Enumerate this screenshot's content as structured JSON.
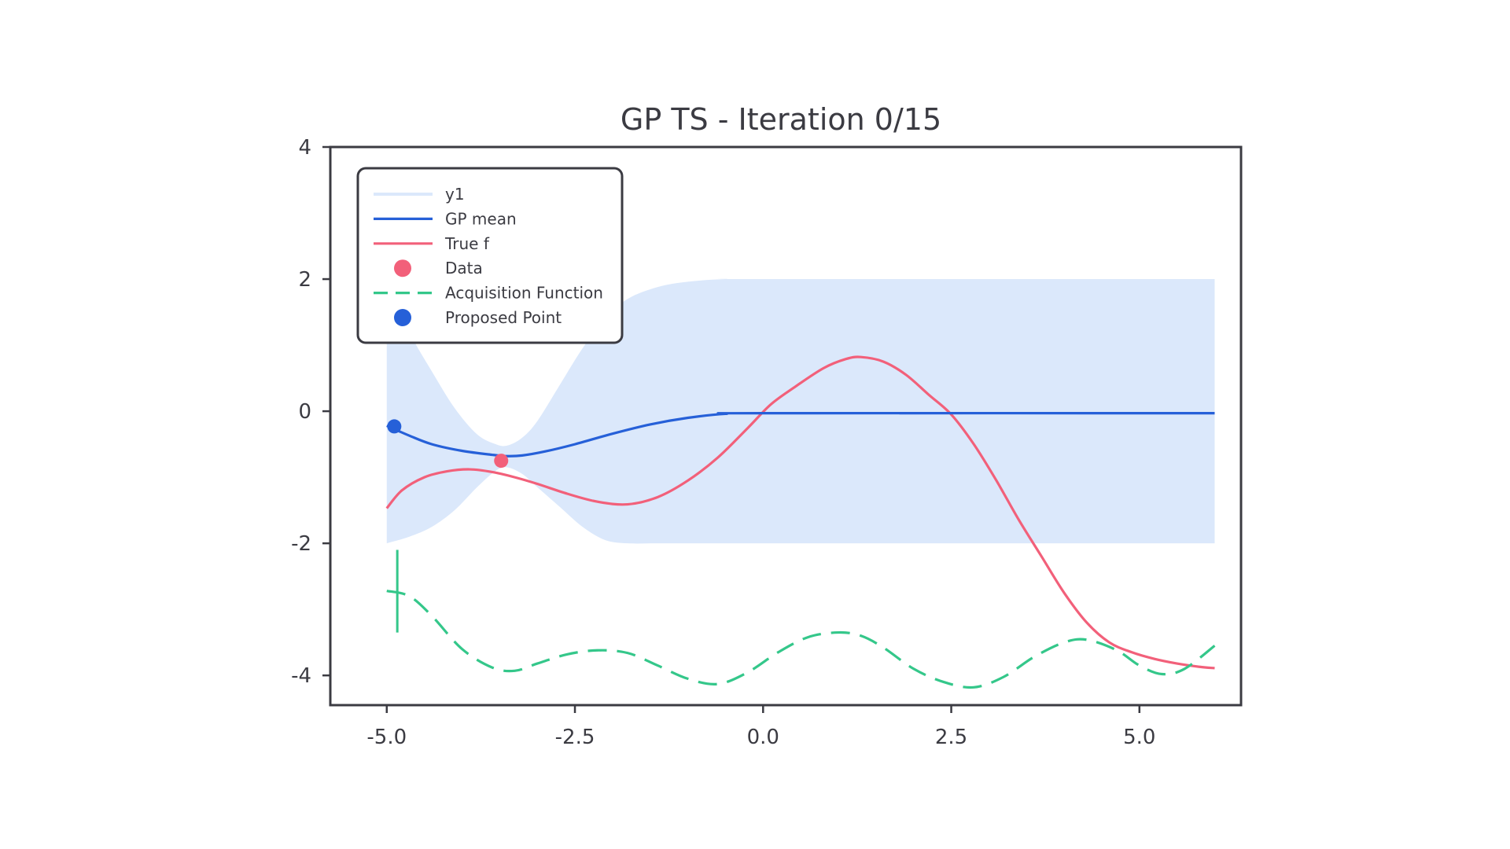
{
  "chart_data": {
    "type": "line",
    "title": "GP TS - Iteration 0/15",
    "xlabel": "",
    "ylabel": "",
    "xlim": [
      -5.75,
      6.35
    ],
    "ylim": [
      -4.45,
      4.0
    ],
    "x_ticks": [
      -5.0,
      -2.5,
      0.0,
      2.5,
      5.0
    ],
    "x_tick_labels": [
      "-5.0",
      "-2.5",
      "0.0",
      "2.5",
      "5.0"
    ],
    "y_ticks": [
      4,
      2,
      0,
      -2,
      -4
    ],
    "y_tick_labels": [
      "4",
      "2",
      "0",
      "-2",
      "-4"
    ],
    "grid": false,
    "legend_position": "top-left",
    "colors": {
      "band": "#dbe8fb",
      "gp_mean": "#2660d8",
      "true_f": "#f2607a",
      "data": "#f2607a",
      "acquisition": "#34c78a",
      "proposed": "#2660d8",
      "axes": "#3b3b42"
    },
    "legend": [
      {
        "label": "y1",
        "kind": "band"
      },
      {
        "label": "GP mean",
        "kind": "gp_mean"
      },
      {
        "label": "True f",
        "kind": "true_f"
      },
      {
        "label": "Data",
        "kind": "data"
      },
      {
        "label": "Acquisition Function",
        "kind": "acquisition"
      },
      {
        "label": "Proposed Point",
        "kind": "proposed"
      }
    ],
    "band": {
      "name": "y1",
      "x": [
        -5.0,
        -4.7,
        -4.4,
        -4.1,
        -3.8,
        -3.55,
        -3.4,
        -3.2,
        -3.0,
        -2.7,
        -2.4,
        -2.1,
        -1.8,
        -1.4,
        -1.0,
        -0.5,
        0.0,
        6.0
      ],
      "upper": [
        2.0,
        1.2,
        0.6,
        0.05,
        -0.35,
        -0.5,
        -0.52,
        -0.4,
        -0.15,
        0.4,
        0.95,
        1.4,
        1.7,
        1.88,
        1.96,
        2.0,
        2.0,
        2.0
      ],
      "lower": [
        -2.0,
        -1.9,
        -1.75,
        -1.5,
        -1.15,
        -0.9,
        -0.85,
        -0.95,
        -1.15,
        -1.45,
        -1.75,
        -1.95,
        -2.0,
        -2.0,
        -2.0,
        -2.0,
        -2.0,
        -2.0
      ]
    },
    "gp_mean": {
      "name": "GP mean",
      "x": [
        -5.0,
        -4.7,
        -4.4,
        -4.0,
        -3.6,
        -3.4,
        -3.2,
        -2.9,
        -2.5,
        -2.0,
        -1.5,
        -1.0,
        -0.5,
        0.0,
        6.0
      ],
      "y": [
        -0.22,
        -0.37,
        -0.5,
        -0.6,
        -0.66,
        -0.68,
        -0.67,
        -0.61,
        -0.5,
        -0.34,
        -0.2,
        -0.1,
        -0.04,
        -0.03,
        -0.03
      ]
    },
    "true_f": {
      "name": "True f",
      "x": [
        -5.0,
        -4.8,
        -4.5,
        -4.2,
        -3.9,
        -3.6,
        -3.3,
        -3.0,
        -2.6,
        -2.2,
        -1.8,
        -1.4,
        -1.0,
        -0.6,
        -0.2,
        0.1,
        0.4,
        0.8,
        1.1,
        1.3,
        1.6,
        1.9,
        2.2,
        2.5,
        2.8,
        3.1,
        3.4,
        3.7,
        4.0,
        4.3,
        4.6,
        4.9,
        5.2,
        5.5,
        5.8,
        6.0
      ],
      "y": [
        -1.47,
        -1.2,
        -1.0,
        -0.91,
        -0.88,
        -0.92,
        -1.0,
        -1.1,
        -1.25,
        -1.37,
        -1.41,
        -1.3,
        -1.05,
        -0.7,
        -0.25,
        0.1,
        0.35,
        0.65,
        0.79,
        0.82,
        0.75,
        0.55,
        0.25,
        -0.05,
        -0.5,
        -1.05,
        -1.65,
        -2.2,
        -2.75,
        -3.2,
        -3.5,
        -3.65,
        -3.75,
        -3.82,
        -3.87,
        -3.89
      ]
    },
    "acquisition": {
      "name": "Acquisition Function",
      "x": [
        -5.0,
        -4.7,
        -4.4,
        -4.0,
        -3.6,
        -3.3,
        -3.0,
        -2.6,
        -2.2,
        -1.8,
        -1.4,
        -1.0,
        -0.6,
        -0.2,
        0.2,
        0.6,
        1.0,
        1.3,
        1.6,
        2.0,
        2.4,
        2.8,
        3.2,
        3.6,
        4.0,
        4.3,
        4.7,
        5.0,
        5.3,
        5.6,
        6.0
      ],
      "y": [
        -2.72,
        -2.8,
        -3.1,
        -3.6,
        -3.88,
        -3.93,
        -3.82,
        -3.68,
        -3.62,
        -3.66,
        -3.85,
        -4.05,
        -4.13,
        -3.95,
        -3.65,
        -3.42,
        -3.35,
        -3.4,
        -3.58,
        -3.9,
        -4.1,
        -4.18,
        -4.02,
        -3.72,
        -3.5,
        -3.46,
        -3.62,
        -3.85,
        -3.98,
        -3.9,
        -3.55
      ]
    },
    "data_points": [
      {
        "x": -3.48,
        "y": -0.75
      }
    ],
    "proposed_points": [
      {
        "x": -4.9,
        "y": -0.23
      }
    ],
    "proposed_marker_line": {
      "x": -4.86,
      "y_from": -2.1,
      "y_to": -3.35
    }
  }
}
